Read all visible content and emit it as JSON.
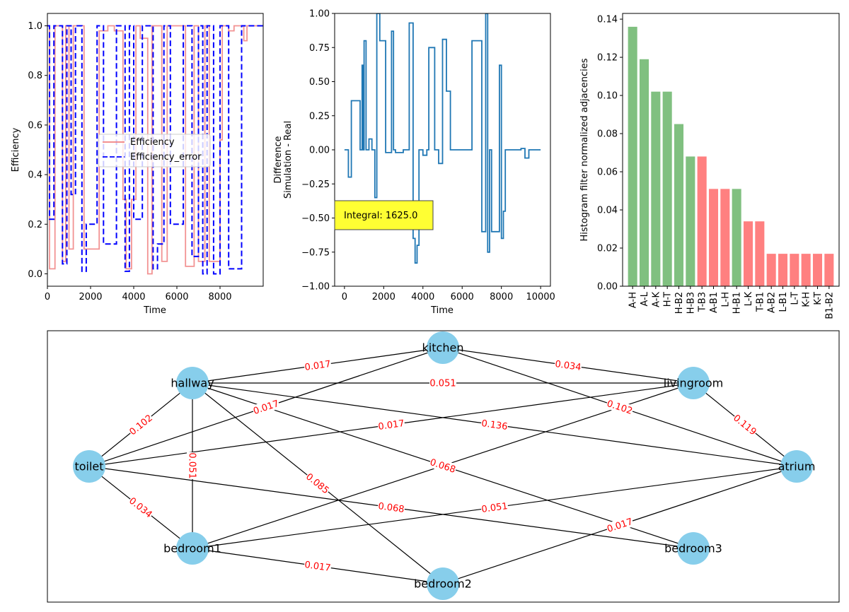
{
  "chart_data": [
    {
      "type": "line",
      "xlabel": "Time",
      "ylabel": "Efficiency",
      "xlim": [
        0,
        10000
      ],
      "ylim": [
        -0.05,
        1.05
      ],
      "xticks": [
        "0",
        "2000",
        "4000",
        "6000",
        "8000"
      ],
      "yticks": [
        "0.0",
        "0.2",
        "0.4",
        "0.6",
        "0.8",
        "1.0"
      ],
      "legend": {
        "placement": "center",
        "entries": [
          "Efficiency",
          "Efficiency_error"
        ]
      },
      "series": [
        {
          "name": "Efficiency",
          "color": "#f08080",
          "style": "solid",
          "x": [
            0,
            100,
            100,
            350,
            350,
            700,
            700,
            850,
            850,
            1000,
            1000,
            1200,
            1200,
            1700,
            1700,
            2400,
            2400,
            2800,
            2800,
            3100,
            3100,
            3500,
            3500,
            3650,
            3650,
            3900,
            3900,
            4100,
            4100,
            4300,
            4300,
            4650,
            4650,
            4850,
            4850,
            5300,
            5300,
            5550,
            5550,
            6400,
            6400,
            6800,
            6800,
            7000,
            7000,
            7300,
            7300,
            7500,
            7500,
            8000,
            8000,
            8100,
            8100,
            8400,
            8400,
            8650,
            8650,
            9100,
            9100,
            9250,
            9250,
            10000
          ],
          "y": [
            1.0,
            1.0,
            0.02,
            0.02,
            1.0,
            1.0,
            0.05,
            0.05,
            1.0,
            1.0,
            0.1,
            0.1,
            1.0,
            1.0,
            0.1,
            0.1,
            0.98,
            0.98,
            1.0,
            1.0,
            0.98,
            0.98,
            0.3,
            0.3,
            0.02,
            0.02,
            0.3,
            0.3,
            1.0,
            1.0,
            0.95,
            0.95,
            0.0,
            0.0,
            1.0,
            1.0,
            0.05,
            0.05,
            1.0,
            1.0,
            0.03,
            0.03,
            1.0,
            1.0,
            0.05,
            0.05,
            1.0,
            1.0,
            0.05,
            0.05,
            0.54,
            0.54,
            1.0,
            1.0,
            0.98,
            0.98,
            1.0,
            1.0,
            0.94,
            0.94,
            1.0,
            1.0
          ]
        },
        {
          "name": "Efficiency_error",
          "color": "#0000ff",
          "style": "dashed",
          "x": [
            0,
            100,
            100,
            300,
            300,
            700,
            700,
            900,
            900,
            1100,
            1100,
            1300,
            1300,
            1600,
            1600,
            1800,
            1800,
            2300,
            2300,
            2600,
            2600,
            3200,
            3200,
            3600,
            3600,
            3800,
            3800,
            4000,
            4000,
            4400,
            4400,
            4900,
            4900,
            5100,
            5100,
            5400,
            5400,
            5700,
            5700,
            6300,
            6300,
            6700,
            6700,
            7000,
            7000,
            7200,
            7200,
            7400,
            7400,
            7700,
            7700,
            8000,
            8000,
            8400,
            8400,
            9000,
            9000,
            9200,
            9200,
            10000
          ],
          "y": [
            1.0,
            1.0,
            0.22,
            0.22,
            1.0,
            1.0,
            0.04,
            0.04,
            1.0,
            1.0,
            0.32,
            0.32,
            1.0,
            1.0,
            0.01,
            0.01,
            0.2,
            0.2,
            1.0,
            1.0,
            0.12,
            0.12,
            1.0,
            1.0,
            0.01,
            0.01,
            1.0,
            1.0,
            0.22,
            0.22,
            1.0,
            1.0,
            0.02,
            0.02,
            0.12,
            0.12,
            1.0,
            1.0,
            0.2,
            0.2,
            1.0,
            1.0,
            0.07,
            0.07,
            1.0,
            1.0,
            0.0,
            0.0,
            1.0,
            1.0,
            0.0,
            0.0,
            1.0,
            1.0,
            0.02,
            0.02,
            1.0,
            1.0,
            1.0,
            1.0
          ]
        }
      ]
    },
    {
      "type": "line",
      "xlabel": "Time",
      "ylabel": "Difference\nSimulation - Real",
      "ylabel_lines": [
        "Difference",
        "Simulation - Real"
      ],
      "xlim": [
        -500,
        10500
      ],
      "ylim": [
        -1.0,
        1.0
      ],
      "xticks": [
        "0",
        "2000",
        "4000",
        "6000",
        "8000",
        "10000"
      ],
      "yticks": [
        "−1.00",
        "−0.75",
        "−0.50",
        "−0.25",
        "0.00",
        "0.25",
        "0.50",
        "0.75",
        "1.00"
      ],
      "annotation": "Integral: 1625.0",
      "series": [
        {
          "color": "#1f77b4",
          "x": [
            0,
            200,
            200,
            350,
            350,
            800,
            800,
            900,
            900,
            950,
            950,
            1000,
            1000,
            1100,
            1100,
            1250,
            1250,
            1400,
            1400,
            1550,
            1550,
            1650,
            1650,
            1800,
            1800,
            2100,
            2100,
            2400,
            2400,
            2500,
            2500,
            2600,
            2600,
            3000,
            3000,
            3300,
            3300,
            3500,
            3500,
            3600,
            3600,
            3700,
            3700,
            3800,
            3800,
            4000,
            4000,
            4200,
            4200,
            4300,
            4300,
            4600,
            4600,
            4800,
            4800,
            5000,
            5000,
            5200,
            5200,
            5400,
            5400,
            5500,
            5500,
            5600,
            5600,
            6000,
            6000,
            6500,
            6500,
            7000,
            7000,
            7200,
            7200,
            7300,
            7300,
            7400,
            7400,
            7500,
            7500,
            7900,
            7900,
            8000,
            8000,
            8100,
            8100,
            8200,
            8200,
            9000,
            9000,
            9200,
            9200,
            9400,
            9400,
            10000
          ],
          "y": [
            0.0,
            0.0,
            -0.2,
            -0.2,
            0.36,
            0.36,
            0.0,
            0.0,
            0.62,
            0.62,
            0.0,
            0.0,
            0.8,
            0.8,
            0.0,
            0.0,
            0.08,
            0.08,
            0.0,
            0.0,
            -0.35,
            -0.35,
            1.0,
            1.0,
            0.8,
            0.8,
            -0.02,
            -0.02,
            0.87,
            0.87,
            0.0,
            0.0,
            -0.02,
            -0.02,
            0.0,
            0.0,
            0.93,
            0.93,
            -0.65,
            -0.65,
            -0.83,
            -0.83,
            -0.7,
            -0.7,
            0.0,
            0.0,
            -0.04,
            -0.04,
            0.0,
            0.0,
            0.75,
            0.75,
            0.0,
            0.0,
            -0.1,
            -0.1,
            0.81,
            0.81,
            0.43,
            0.43,
            0.0,
            0.0,
            0.0,
            0.0,
            0.0,
            0.0,
            0.0,
            0.0,
            0.8,
            0.8,
            -0.6,
            -0.6,
            1.0,
            1.0,
            -0.75,
            -0.75,
            0.0,
            0.0,
            -0.6,
            -0.6,
            0.62,
            0.62,
            -0.65,
            -0.65,
            -0.45,
            -0.45,
            0.0,
            0.0,
            0.01,
            0.01,
            -0.06,
            -0.06,
            0.0,
            0.0
          ]
        }
      ]
    },
    {
      "type": "bar",
      "ylabel": "Histogram filter normalized adjacencies",
      "ylim": [
        0,
        0.143
      ],
      "yticks": [
        "0.00",
        "0.02",
        "0.04",
        "0.06",
        "0.08",
        "0.10",
        "0.12",
        "0.14"
      ],
      "categories": [
        "A-H",
        "A-L",
        "A-K",
        "H-T",
        "H-B2",
        "H-B3",
        "T-B3",
        "A-B1",
        "L-H",
        "H-B1",
        "L-K",
        "T-B1",
        "A-B2",
        "L-B1",
        "L-T",
        "K-H",
        "K-T",
        "B1-B2"
      ],
      "values": [
        0.136,
        0.119,
        0.102,
        0.102,
        0.085,
        0.068,
        0.068,
        0.051,
        0.051,
        0.051,
        0.034,
        0.034,
        0.017,
        0.017,
        0.017,
        0.017,
        0.017,
        0.017
      ],
      "colors": [
        "#80c080",
        "#80c080",
        "#80c080",
        "#80c080",
        "#80c080",
        "#80c080",
        "#ff8080",
        "#ff8080",
        "#ff8080",
        "#80c080",
        "#ff8080",
        "#ff8080",
        "#ff8080",
        "#ff8080",
        "#ff8080",
        "#ff8080",
        "#ff8080",
        "#ff8080"
      ]
    },
    {
      "type": "network",
      "node_color": "#87ceeb",
      "edge_label_color": "#ff0000",
      "nodes": [
        "kitchen",
        "hallway",
        "livingroom",
        "toilet",
        "atrium",
        "bedroom1",
        "bedroom2",
        "bedroom3"
      ],
      "edges": [
        {
          "source": "hallway",
          "target": "kitchen",
          "label": "0.017"
        },
        {
          "source": "kitchen",
          "target": "livingroom",
          "label": "0.034"
        },
        {
          "source": "hallway",
          "target": "livingroom",
          "label": "0.051"
        },
        {
          "source": "hallway",
          "target": "toilet",
          "label": "0.102"
        },
        {
          "source": "livingroom",
          "target": "atrium",
          "label": "0.119"
        },
        {
          "source": "hallway",
          "target": "atrium",
          "label": "0.136"
        },
        {
          "source": "kitchen",
          "target": "atrium",
          "label": "0.102"
        },
        {
          "source": "toilet",
          "target": "livingroom",
          "label": "0.017"
        },
        {
          "source": "hallway",
          "target": "bedroom3",
          "label": "0.068"
        },
        {
          "source": "hallway",
          "target": "bedroom1",
          "label": "0.051"
        },
        {
          "source": "hallway",
          "target": "bedroom2",
          "label": "0.085"
        },
        {
          "source": "toilet",
          "target": "bedroom1",
          "label": "0.034"
        },
        {
          "source": "toilet",
          "target": "bedroom3",
          "label": "0.068"
        },
        {
          "source": "toilet",
          "target": "kitchen",
          "label": "0.017"
        },
        {
          "source": "bedroom1",
          "target": "livingroom",
          "label": ""
        },
        {
          "source": "bedroom1",
          "target": "atrium",
          "label": "0.051"
        },
        {
          "source": "bedroom1",
          "target": "bedroom2",
          "label": "0.017"
        },
        {
          "source": "bedroom2",
          "target": "atrium",
          "label": "0.017"
        }
      ]
    }
  ]
}
